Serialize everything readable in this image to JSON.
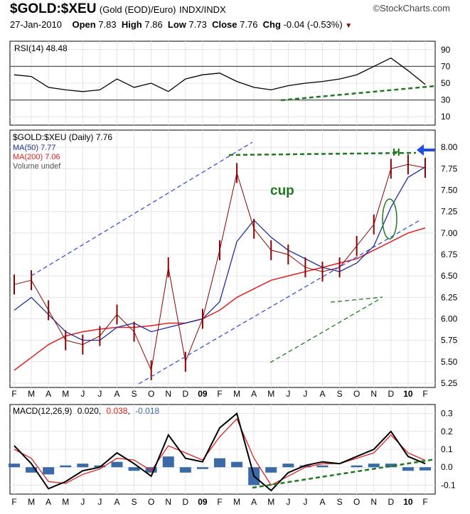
{
  "header": {
    "symbol": "$GOLD:$XEU",
    "description": "(Gold (EOD)/Euro)",
    "exchange": "INDX/INDX",
    "watermark": "©StockCharts.com",
    "date": "27-Jan-2010",
    "open_label": "Open",
    "open": "7.83",
    "high_label": "High",
    "high": "7.86",
    "low_label": "Low",
    "low": "7.73",
    "close_label": "Close",
    "close": "7.76",
    "chg_label": "Chg",
    "chg": "-0.04 (-0.53%)"
  },
  "colors": {
    "price": "#8b0000",
    "ma50": "#1f2f9a",
    "ma200": "#e02020",
    "annotation": "#1f7a1f",
    "channel": "#3a4fd8",
    "arrow": "#1f4fe0",
    "rsi": "#000000",
    "histogram": "#3a6aa8",
    "signal": "#e02020"
  },
  "months": [
    "F",
    "M",
    "A",
    "M",
    "J",
    "J",
    "A",
    "S",
    "O",
    "N",
    "D",
    "09",
    "F",
    "M",
    "A",
    "M",
    "J",
    "J",
    "A",
    "S",
    "O",
    "N",
    "D",
    "10",
    "F"
  ],
  "annotations": {
    "cup": "cup",
    "handle": "H"
  },
  "chart_data": [
    {
      "type": "line",
      "panel": "RSI",
      "legend": "RSI(14) 48.48",
      "ylim": [
        0,
        100
      ],
      "y_ticks": [
        10,
        30,
        50,
        70,
        90
      ],
      "reference_lines": [
        30,
        70
      ],
      "x": [
        "2009-01",
        "2009-02",
        "2009-03",
        "2009-04",
        "2009-05",
        "2009-06",
        "2009-07",
        "2009-08",
        "2009-09",
        "2009-10",
        "2009-11",
        "2009-12",
        "2010-01",
        "2010-02",
        "2010-03",
        "2010-04",
        "2010-05",
        "2010-06",
        "2010-07",
        "2010-08",
        "2010-09",
        "2010-10",
        "2010-11",
        "2010-12",
        "2011-01"
      ],
      "series": [
        {
          "values": [
            60,
            58,
            45,
            42,
            40,
            42,
            55,
            45,
            50,
            40,
            55,
            60,
            62,
            52,
            45,
            42,
            47,
            50,
            52,
            55,
            60,
            70,
            80,
            65,
            48.48
          ]
        }
      ]
    },
    {
      "type": "line",
      "panel": "Price",
      "legend": "$GOLD:$XEU (Daily) 7.76",
      "ylim": [
        5.2,
        8.2
      ],
      "y_ticks": [
        5.25,
        5.5,
        5.75,
        6.0,
        6.25,
        6.5,
        6.75,
        7.0,
        7.25,
        7.5,
        7.75,
        8.0
      ],
      "x": [
        "2009-01",
        "2009-02",
        "2009-03",
        "2009-04",
        "2009-05",
        "2009-06",
        "2009-07",
        "2009-08",
        "2009-09",
        "2009-10",
        "2009-11",
        "2009-12",
        "2010-01",
        "2010-02",
        "2010-03",
        "2010-04",
        "2010-05",
        "2010-06",
        "2010-07",
        "2010-08",
        "2010-09",
        "2010-10",
        "2010-11",
        "2010-12",
        "2011-01"
      ],
      "series": [
        {
          "name": "$GOLD:$XEU (Daily) 7.76",
          "values": [
            6.4,
            6.45,
            6.1,
            5.75,
            5.7,
            5.8,
            6.05,
            5.85,
            5.4,
            6.6,
            5.5,
            6.0,
            6.8,
            7.7,
            7.05,
            6.8,
            6.75,
            6.6,
            6.55,
            6.6,
            6.85,
            7.1,
            7.75,
            7.8,
            7.76
          ]
        },
        {
          "name": "MA(50) 7.77",
          "values": [
            6.1,
            6.25,
            6.05,
            5.85,
            5.75,
            5.75,
            5.9,
            5.95,
            5.85,
            5.9,
            5.95,
            6.0,
            6.2,
            6.9,
            7.15,
            6.95,
            6.8,
            6.7,
            6.6,
            6.55,
            6.65,
            6.85,
            7.3,
            7.65,
            7.77
          ]
        },
        {
          "name": "MA(200) 7.06",
          "values": [
            5.4,
            5.55,
            5.7,
            5.8,
            5.85,
            5.88,
            5.9,
            5.9,
            5.92,
            5.95,
            5.95,
            6.0,
            6.1,
            6.25,
            6.35,
            6.45,
            6.5,
            6.55,
            6.6,
            6.65,
            6.7,
            6.8,
            6.9,
            7.0,
            7.06
          ]
        }
      ],
      "extra_legend": [
        "Volume undef"
      ]
    },
    {
      "type": "line",
      "panel": "MACD",
      "legend_prefix": "MACD(12,26,9)",
      "legend_values": [
        "0.020",
        "0.038",
        "-0.018"
      ],
      "ylim": [
        -0.15,
        0.35
      ],
      "y_ticks": [
        -0.1,
        0.0,
        0.1,
        0.2,
        0.3
      ],
      "x": [
        "2009-01",
        "2009-02",
        "2009-03",
        "2009-04",
        "2009-05",
        "2009-06",
        "2009-07",
        "2009-08",
        "2009-09",
        "2009-10",
        "2009-11",
        "2009-12",
        "2010-01",
        "2010-02",
        "2010-03",
        "2010-04",
        "2010-05",
        "2010-06",
        "2010-07",
        "2010-08",
        "2010-09",
        "2010-10",
        "2010-11",
        "2010-12",
        "2011-01"
      ],
      "series": [
        {
          "values": [
            0.12,
            0.02,
            -0.12,
            -0.08,
            -0.02,
            0.0,
            0.08,
            0.02,
            -0.05,
            0.18,
            0.05,
            0.03,
            0.22,
            0.3,
            -0.05,
            -0.13,
            -0.03,
            0.01,
            0.03,
            0.02,
            0.06,
            0.1,
            0.2,
            0.06,
            0.02
          ]
        },
        {
          "values": [
            0.1,
            0.05,
            -0.08,
            -0.09,
            -0.04,
            -0.01,
            0.05,
            0.04,
            -0.02,
            0.12,
            0.08,
            0.04,
            0.17,
            0.27,
            0.05,
            -0.1,
            -0.05,
            0.0,
            0.02,
            0.02,
            0.05,
            0.08,
            0.18,
            0.08,
            0.038
          ]
        },
        {
          "values": [
            0.02,
            -0.03,
            -0.04,
            0.01,
            0.02,
            0.01,
            0.03,
            -0.02,
            -0.03,
            0.06,
            -0.03,
            -0.01,
            0.05,
            0.03,
            -0.1,
            -0.03,
            0.02,
            0.01,
            0.01,
            0.0,
            0.01,
            0.02,
            0.02,
            -0.02,
            -0.018
          ]
        }
      ]
    }
  ]
}
